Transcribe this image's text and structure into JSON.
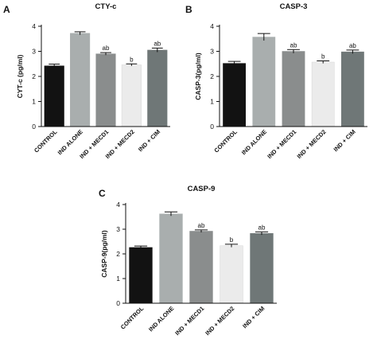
{
  "chart_data": [
    {
      "type": "bar",
      "panel": "A",
      "title": "CTY-c",
      "ylabel": "CYT-c (pg/ml)",
      "ylim": [
        0,
        4
      ],
      "yticks": [
        "0",
        "1",
        "2",
        "3",
        "4"
      ],
      "categories": [
        "CONTROL",
        "IND ALONE",
        "IND + MECD1",
        "IND + MECD2",
        "IND + CIM"
      ],
      "values": [
        2.42,
        3.72,
        2.9,
        2.46,
        3.05
      ],
      "errors": [
        0.07,
        0.06,
        0.05,
        0.04,
        0.08
      ],
      "significance": [
        "",
        "",
        "ab",
        "b",
        "ab"
      ],
      "bar_colors": [
        "#121212",
        "#a9aeae",
        "#8a8d8d",
        "#ebebeb",
        "#6f7777"
      ]
    },
    {
      "type": "bar",
      "panel": "B",
      "title": "CASP-3",
      "ylabel": "CASP-3(pg/ml)",
      "ylim": [
        0,
        4
      ],
      "yticks": [
        "0",
        "1",
        "2",
        "3",
        "4"
      ],
      "categories": [
        "CONTROL",
        "IND ALONE",
        "IND + MECD1",
        "IND + MECD2",
        "IND + CIM"
      ],
      "values": [
        2.52,
        3.57,
        3.0,
        2.57,
        2.98
      ],
      "errors": [
        0.08,
        0.14,
        0.07,
        0.05,
        0.07
      ],
      "significance": [
        "",
        "",
        "ab",
        "b",
        "ab"
      ],
      "bar_colors": [
        "#121212",
        "#a9aeae",
        "#8a8d8d",
        "#ebebeb",
        "#6f7777"
      ]
    },
    {
      "type": "bar",
      "panel": "C",
      "title": "CASP-9",
      "ylabel": "CASP-9(pg/ml)",
      "ylim": [
        0,
        4
      ],
      "yticks": [
        "0",
        "1",
        "2",
        "3",
        "4"
      ],
      "categories": [
        "CONTROL",
        "IND ALONE",
        "IND + MECD1",
        "IND + MECD2",
        "IND + CIM"
      ],
      "values": [
        2.26,
        3.62,
        2.92,
        2.33,
        2.83
      ],
      "errors": [
        0.06,
        0.08,
        0.05,
        0.06,
        0.06
      ],
      "significance": [
        "",
        "",
        "ab",
        "b",
        "ab"
      ],
      "bar_colors": [
        "#121212",
        "#a9aeae",
        "#8a8d8d",
        "#ebebeb",
        "#6f7777"
      ]
    }
  ]
}
